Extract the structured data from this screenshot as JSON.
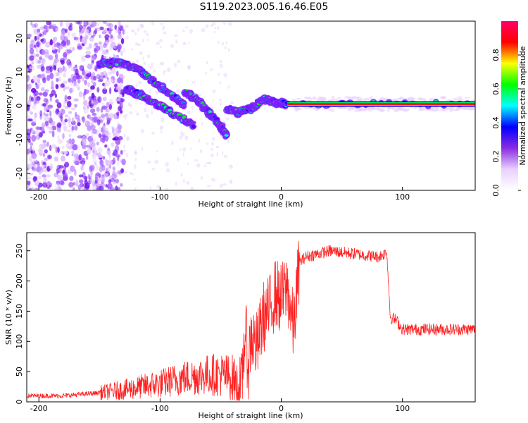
{
  "title": "S119.2023.005.16.46.E05",
  "chart_data": [
    {
      "type": "heatmap",
      "title": "S119.2023.005.16.46.E05",
      "xlabel": "Height of straight line (km)",
      "ylabel": "Frequency (Hz)",
      "xlim": [
        -210,
        160
      ],
      "ylim": [
        -25,
        25
      ],
      "x_ticks": [
        -200,
        -100,
        0,
        100
      ],
      "y_ticks": [
        -20,
        -10,
        0,
        10,
        20
      ],
      "colorbar": {
        "label": "Normalized spectral amplitude",
        "range": [
          0.0,
          1.0
        ],
        "ticks": [
          0.0,
          0.2,
          0.4,
          0.6,
          0.8
        ],
        "colormap": [
          "#ffffff",
          "#e9d0ff",
          "#8a2be2",
          "#0000ff",
          "#00ffff",
          "#00ff00",
          "#ffff00",
          "#ff0000",
          "#ff0066"
        ]
      },
      "ridges": [
        {
          "x": [
            -150,
            -135,
            -120,
            -105,
            -90,
            -80
          ],
          "y": [
            12,
            13,
            11,
            7,
            3,
            0
          ]
        },
        {
          "x": [
            -128,
            -115,
            -100,
            -85,
            -72
          ],
          "y": [
            5,
            3,
            0,
            -3,
            -6
          ]
        },
        {
          "x": [
            -80,
            -70,
            -60,
            -50,
            -45
          ],
          "y": [
            4,
            2,
            -2,
            -6,
            -9
          ]
        },
        {
          "x": [
            -45,
            -35,
            -25,
            -15,
            -5,
            5,
            160
          ],
          "y": [
            -1,
            -2,
            -1,
            2,
            1,
            0.5,
            0.5
          ]
        }
      ]
    },
    {
      "type": "line",
      "xlabel": "Height of straight line (km)",
      "ylabel": "SNR (10 * v/v)",
      "xlim": [
        -210,
        160
      ],
      "ylim": [
        0,
        280
      ],
      "x_ticks": [
        -200,
        -100,
        0,
        100
      ],
      "y_ticks": [
        0,
        50,
        100,
        150,
        200,
        250
      ],
      "color": "#ff2020",
      "x": [
        -210,
        -180,
        -150,
        -130,
        -100,
        -80,
        -60,
        -50,
        -40,
        -33,
        -30,
        -27,
        -25,
        -20,
        -15,
        -10,
        -5,
        0,
        5,
        10,
        15,
        20,
        40,
        60,
        80,
        85,
        87,
        90,
        95,
        100,
        120,
        140,
        160
      ],
      "y": [
        10,
        10,
        15,
        20,
        30,
        40,
        45,
        45,
        40,
        15,
        120,
        60,
        110,
        90,
        140,
        150,
        180,
        170,
        190,
        120,
        230,
        240,
        250,
        245,
        240,
        245,
        250,
        140,
        135,
        120,
        120,
        120,
        120
      ]
    }
  ]
}
